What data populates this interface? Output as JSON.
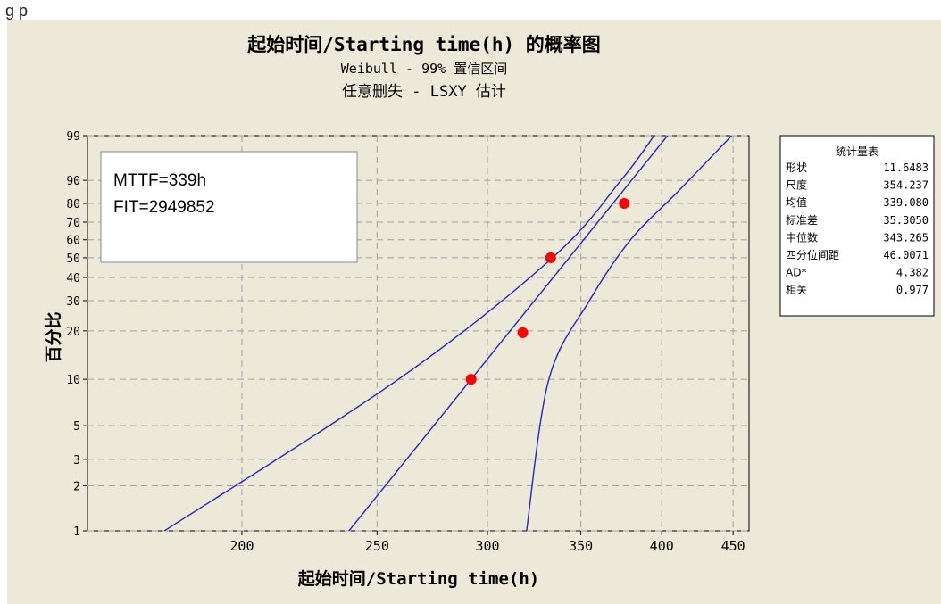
{
  "top_partial_text": "g                      p",
  "chart_data": {
    "type": "scatter",
    "title": "起始时间/Starting time(h) 的概率图",
    "subtitle_1": "Weibull - 99% 置信区间",
    "subtitle_2": "任意删失 - LSXY 估计",
    "xlabel": "起始时间/Starting time(h)",
    "ylabel": "百分比",
    "x_scale": "log",
    "y_scale": "weibull-probability",
    "xlim": [
      155,
      462
    ],
    "ylim": [
      1,
      99
    ],
    "x_ticks": [
      200,
      250,
      300,
      350,
      400,
      450
    ],
    "x_tick_labels": [
      "200",
      "250",
      "300",
      "350",
      "400",
      "450"
    ],
    "y_ticks": [
      1,
      2,
      3,
      5,
      10,
      20,
      30,
      40,
      50,
      60,
      70,
      80,
      90,
      99
    ],
    "y_tick_labels": [
      "1",
      "2",
      "3",
      "5",
      "10",
      "20",
      "30",
      "40",
      "50",
      "60",
      "70",
      "80",
      "90",
      "99"
    ],
    "grid": true,
    "points": [
      {
        "x": 292,
        "y": 10
      },
      {
        "x": 318,
        "y": 19.5
      },
      {
        "x": 333,
        "y": 50
      },
      {
        "x": 376,
        "y": 80
      }
    ],
    "fit": {
      "shape": 11.6483,
      "scale": 354.237
    },
    "confidence_band": {
      "lower": [
        {
          "x": 176,
          "y": 1
        },
        {
          "x": 259,
          "y": 10
        },
        {
          "x": 334,
          "y": 50
        },
        {
          "x": 374,
          "y": 90
        },
        {
          "x": 395,
          "y": 99
        }
      ],
      "upper": [
        {
          "x": 320,
          "y": 1
        },
        {
          "x": 332,
          "y": 10
        },
        {
          "x": 355,
          "y": 30
        },
        {
          "x": 380,
          "y": 60
        },
        {
          "x": 410,
          "y": 85
        },
        {
          "x": 449,
          "y": 99
        }
      ]
    },
    "annotation_lines": [
      "MTTF=339h",
      "FIT=2949852"
    ],
    "stats_table": {
      "title": "统计量表",
      "rows": [
        {
          "label": "形状",
          "value": "11.6483"
        },
        {
          "label": "尺度",
          "value": "354.237"
        },
        {
          "label": "均值",
          "value": "339.080"
        },
        {
          "label": "标准差",
          "value": "35.3050"
        },
        {
          "label": "中位数",
          "value": "343.265"
        },
        {
          "label": "四分位间距",
          "value": "46.0071"
        },
        {
          "label": "AD*",
          "value": "4.382"
        },
        {
          "label": "相关",
          "value": "0.977"
        }
      ]
    },
    "colors": {
      "points": "#ff0000",
      "lines": "#2626b8",
      "background": "#ece9d8",
      "grid": "#a0a0a0"
    }
  }
}
